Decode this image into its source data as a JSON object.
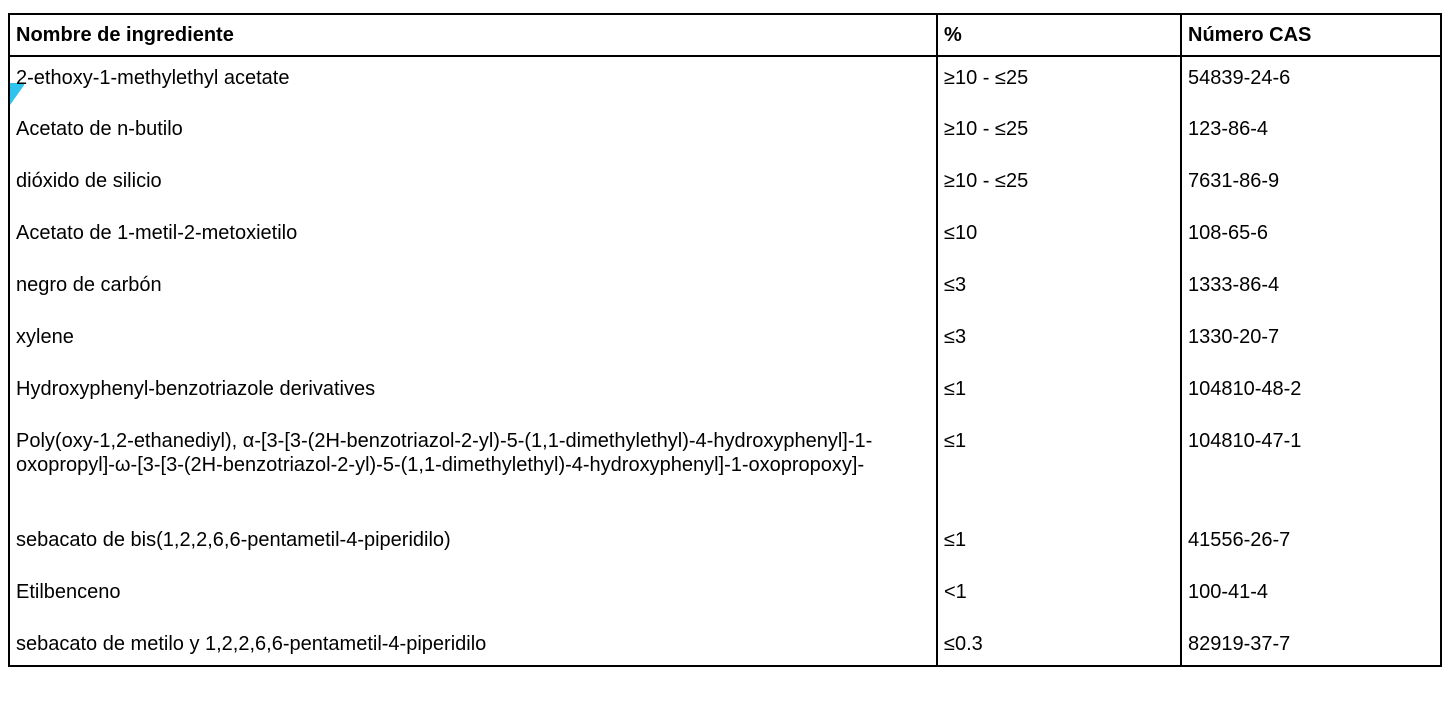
{
  "table": {
    "headers": [
      "Nombre de ingrediente",
      "%",
      "Número CAS"
    ],
    "rows": [
      {
        "name": "2-ethoxy-1-methylethyl acetate",
        "pct": "≥10 - ≤25",
        "cas": "54839-24-6"
      },
      {
        "name": "Acetato de n-butilo",
        "pct": "≥10 - ≤25",
        "cas": "123-86-4"
      },
      {
        "name": "dióxido de silicio",
        "pct": "≥10 - ≤25",
        "cas": "7631-86-9"
      },
      {
        "name": "Acetato de 1-metil-2-metoxietilo",
        "pct": "≤10",
        "cas": "108-65-6"
      },
      {
        "name": "negro de carbón",
        "pct": "≤3",
        "cas": "1333-86-4"
      },
      {
        "name": "xylene",
        "pct": "≤3",
        "cas": "1330-20-7"
      },
      {
        "name": "Hydroxyphenyl-benzotriazole derivatives",
        "pct": "≤1",
        "cas": "104810-48-2"
      },
      {
        "name": "Poly(oxy-1,2-ethanediyl), α-[3-[3-(2H-benzotriazol-2-yl)-5-(1,1-dimethylethyl)-4-hydroxyphenyl]-1-oxopropyl]-ω-[3-[3-(2H-benzotriazol-2-yl)-5-(1,1-dimethylethyl)-4-hydroxyphenyl]-1-oxopropoxy]-",
        "pct": "≤1",
        "cas": "104810-47-1"
      },
      {
        "name": "sebacato de bis(1,2,2,6,6-pentametil-4-piperidilo)",
        "pct": "≤1",
        "cas": "41556-26-7"
      },
      {
        "name": "Etilbenceno",
        "pct": "<1",
        "cas": "100-41-4"
      },
      {
        "name": "sebacato de metilo y 1,2,2,6,6-pentametil-4-piperidilo",
        "pct": "≤0.3",
        "cas": "82919-37-7"
      }
    ]
  },
  "marker_color": "#2ec4ef"
}
